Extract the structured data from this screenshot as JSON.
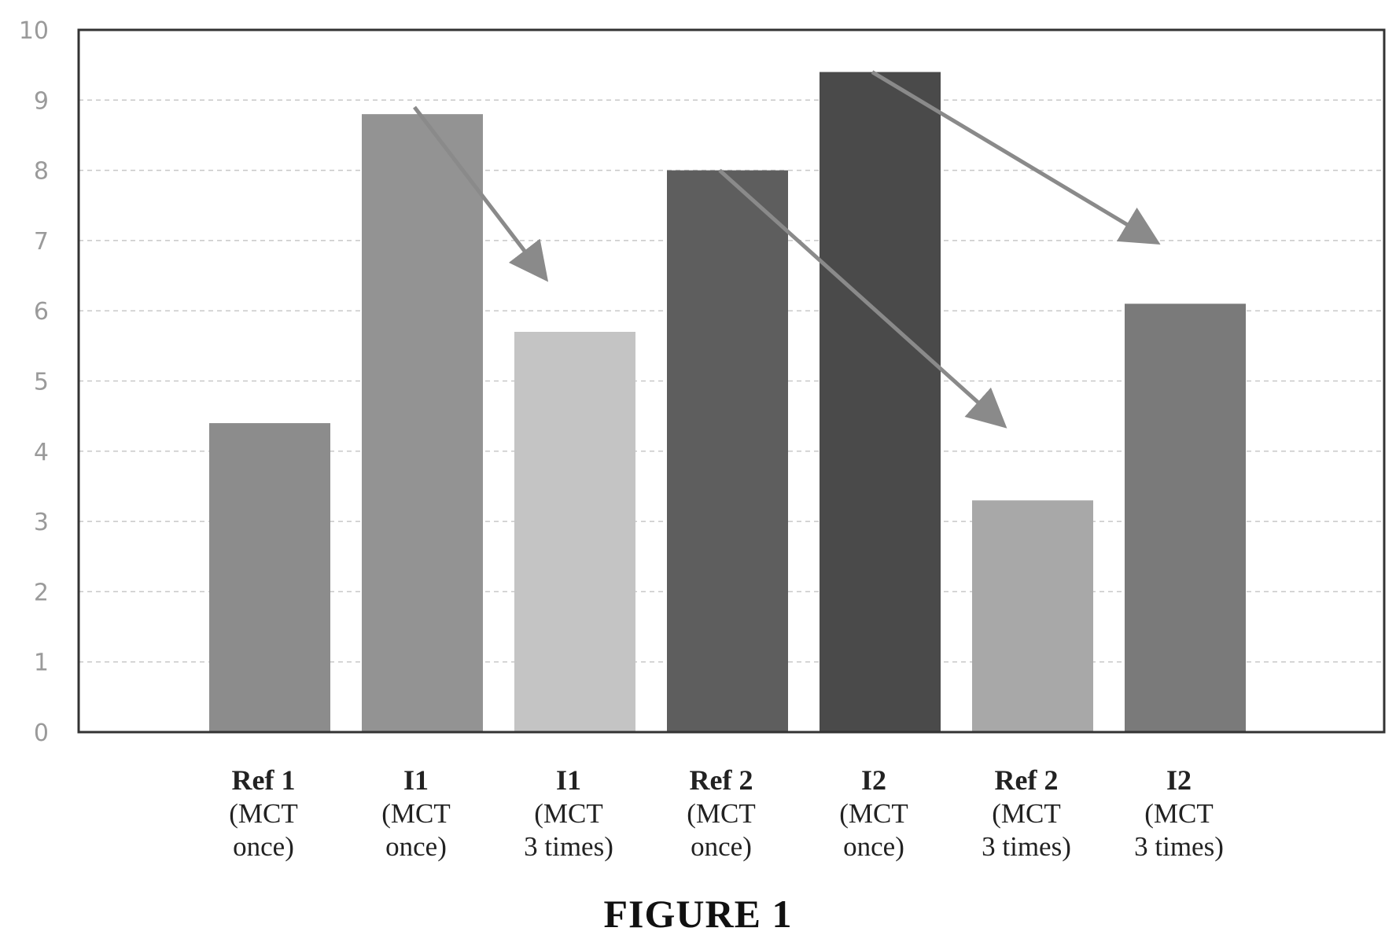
{
  "figure_caption": "FIGURE 1",
  "colors": {
    "frame": "#333333",
    "gridline": "#c8c8c8",
    "arrow": "#8a8a8a",
    "bars": [
      "#8c8c8c",
      "#939393",
      "#c4c4c4",
      "#5e5e5e",
      "#4a4a4a",
      "#a8a8a8",
      "#7a7a7a"
    ]
  },
  "chart_data": {
    "type": "bar",
    "title": "",
    "xlabel": "",
    "ylabel": "",
    "ylim": [
      0,
      10
    ],
    "yticks": [
      0,
      1,
      2,
      3,
      4,
      5,
      6,
      7,
      8,
      9,
      10
    ],
    "grid": true,
    "legend": "none",
    "categories": [
      {
        "name": "Ref 1",
        "line1": "(MCT",
        "line2": "once)"
      },
      {
        "name": "I1",
        "line1": "(MCT",
        "line2": "once)"
      },
      {
        "name": "I1",
        "line1": "(MCT",
        "line2": "3 times)"
      },
      {
        "name": "Ref 2",
        "line1": "(MCT",
        "line2": "once)"
      },
      {
        "name": "I2",
        "line1": "(MCT",
        "line2": "once)"
      },
      {
        "name": "Ref 2",
        "line1": "(MCT",
        "line2": "3 times)"
      },
      {
        "name": "I2",
        "line1": "(MCT",
        "line2": "3 times)"
      }
    ],
    "values": [
      4.4,
      8.8,
      5.7,
      8.0,
      9.4,
      3.3,
      6.1
    ],
    "annotations": [
      {
        "type": "arrow",
        "from": {
          "category": 1,
          "y": 8.9
        },
        "to": {
          "category": 2,
          "y": 6.5
        }
      },
      {
        "type": "arrow",
        "from": {
          "category": 3,
          "y": 8.0
        },
        "to": {
          "category": 5,
          "y": 4.4
        }
      },
      {
        "type": "arrow",
        "from": {
          "category": 4,
          "y": 9.4
        },
        "to": {
          "category": 6,
          "y": 7.0
        }
      }
    ]
  }
}
